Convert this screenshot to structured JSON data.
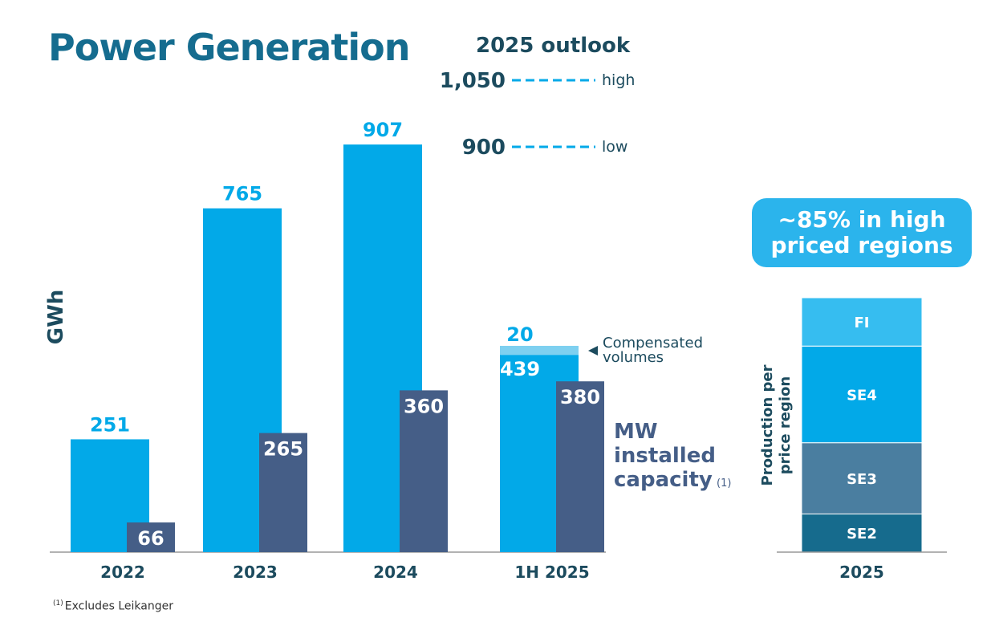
{
  "title": "Power Generation",
  "colors": {
    "generation": "#02a9e8",
    "capacity": "#455e87",
    "compensated": "#7ed0f0",
    "title": "#156c8f",
    "region_FI": "#36bdf0",
    "region_SE4": "#02a9e8",
    "region_SE3": "#4a7ea0",
    "region_SE2": "#166b8d"
  },
  "footnote": {
    "marker": "(1)",
    "text": "Excludes Leikanger"
  },
  "callout": "~85% in high\npriced regions",
  "chart_data": [
    {
      "type": "bar",
      "ylabel": "GWh",
      "categories": [
        "2022",
        "2023",
        "2024",
        "1H 2025"
      ],
      "series": [
        {
          "key": "generation",
          "values": [
            251,
            765,
            907,
            439
          ],
          "labels": [
            "251",
            "765",
            "907",
            "439"
          ]
        },
        {
          "key": "compensated",
          "values": [
            null,
            null,
            null,
            20
          ],
          "labels": [
            "",
            "",
            "",
            "20"
          ],
          "stacked_on": "generation",
          "annotation": [
            "Compensated",
            "volumes"
          ]
        },
        {
          "key": "capacity",
          "values": [
            66,
            265,
            360,
            380
          ],
          "labels": [
            "66",
            "265",
            "360",
            "380"
          ],
          "legend": [
            "MW",
            "installed",
            "capacity"
          ],
          "legend_marker": "(1)"
        }
      ],
      "outlook": {
        "title": "2025 outlook",
        "lines": [
          {
            "value": 1050,
            "value_label": "1,050",
            "label": "high"
          },
          {
            "value": 900,
            "value_label": "900",
            "label": "low"
          }
        ]
      }
    },
    {
      "type": "bar",
      "stacked": true,
      "ylabel": "Production per price region",
      "categories": [
        "2025"
      ],
      "segments": [
        "SE2",
        "SE3",
        "SE4",
        "FI"
      ],
      "approx_shares_pct": [
        15,
        28,
        38,
        19
      ]
    }
  ]
}
